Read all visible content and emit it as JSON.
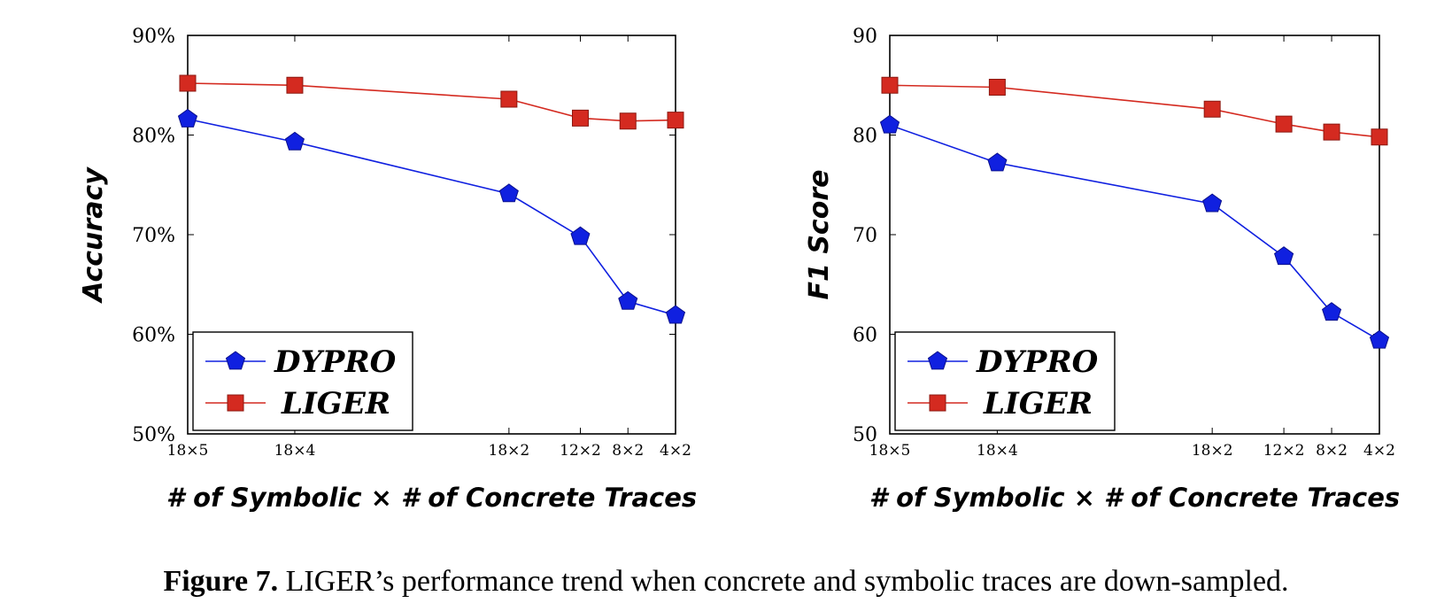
{
  "chart_data": [
    {
      "type": "line",
      "ylabel": "Accuracy",
      "xlabel": "# of Symbolic × # of Concrete Traces",
      "categories": [
        "18×5",
        "18×4",
        "18×2",
        "12×2",
        "8×2",
        "4×2"
      ],
      "x": [
        90,
        72,
        36,
        24,
        16,
        8
      ],
      "xlim": [
        8,
        90
      ],
      "ylim": [
        50,
        90
      ],
      "yticks": [
        "50%",
        "60%",
        "70%",
        "80%",
        "90%"
      ],
      "series": [
        {
          "name": "DYPRO",
          "color": "#1020e0",
          "marker": "pentagon",
          "values": [
            81.6,
            79.3,
            74.1,
            69.8,
            63.3,
            61.9
          ]
        },
        {
          "name": "LIGER",
          "color": "#d42a20",
          "marker": "square",
          "values": [
            85.2,
            85.0,
            83.6,
            81.7,
            81.4,
            81.5
          ]
        }
      ],
      "legend": "bottom-left",
      "grid": false
    },
    {
      "type": "line",
      "ylabel": "F1 Score",
      "xlabel": "# of Symbolic × # of Concrete Traces",
      "categories": [
        "18×5",
        "18×4",
        "18×2",
        "12×2",
        "8×2",
        "4×2"
      ],
      "x": [
        90,
        72,
        36,
        24,
        16,
        8
      ],
      "xlim": [
        8,
        90
      ],
      "ylim": [
        50,
        90
      ],
      "yticks": [
        "50",
        "60",
        "70",
        "80",
        "90"
      ],
      "series": [
        {
          "name": "DYPRO",
          "color": "#1020e0",
          "marker": "pentagon",
          "values": [
            81.0,
            77.2,
            73.1,
            67.8,
            62.2,
            59.4
          ]
        },
        {
          "name": "LIGER",
          "color": "#d42a20",
          "marker": "square",
          "values": [
            85.0,
            84.8,
            82.6,
            81.1,
            80.3,
            79.8
          ]
        }
      ],
      "legend": "bottom-left",
      "grid": false
    }
  ],
  "legend_labels": {
    "dypro": "DYPRO",
    "liger": "LIGER"
  },
  "caption": {
    "label": "Figure 7.",
    "liger_name": "LIGER",
    "text": "’s performance trend when concrete and symbolic traces are down-sampled."
  }
}
